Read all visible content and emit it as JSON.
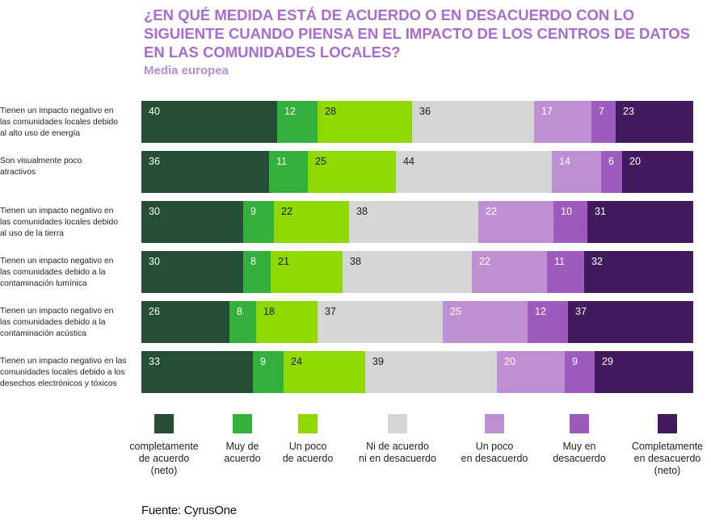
{
  "chart_data": {
    "type": "bar",
    "orientation": "horizontal",
    "stacked": true,
    "title": "¿En qué medida está de acuerdo o en desacuerdo con lo siguiente cuando piensa en el impacto de los centros de datos en las comunidades locales?",
    "subtitle": "Media europea",
    "categories": [
      "Tienen un impacto negativo en las comunidades locales debido al alto uso de energía",
      "Son visualmente poco atractivos",
      "Tienen un impacto negativo en las comunidades locales debido al uso de la tierra",
      "Tienen un impacto negativo en las comunidades debido a la contaminación lumínica",
      "Tienen un impacto negativo en las comunidades debido a la contaminación acústica",
      "Tienen un impacto negativo en las comunidades locales debido a los desechos electrónicos y tóxicos"
    ],
    "series": [
      {
        "name": "completamente de acuerdo (neto)",
        "color": "#264d35",
        "label_color": "#ffffff",
        "values": [
          40,
          36,
          30,
          30,
          26,
          33
        ]
      },
      {
        "name": "Muy de acuerdo",
        "color": "#34b03c",
        "label_color": "#ffffff",
        "values": [
          12,
          11,
          9,
          8,
          8,
          9
        ]
      },
      {
        "name": "Un poco de acuerdo",
        "color": "#8fd800",
        "label_color": "#1a1a1a",
        "values": [
          28,
          25,
          22,
          21,
          18,
          24
        ]
      },
      {
        "name": "Ni de acuerdo ni en desacuerdo",
        "color": "#d5d5d5",
        "label_color": "#1a1a1a",
        "values": [
          36,
          44,
          38,
          38,
          37,
          39
        ]
      },
      {
        "name": "Un poco en desacuerdo",
        "color": "#bf8fd3",
        "label_color": "#ffffff",
        "values": [
          17,
          14,
          22,
          22,
          25,
          20
        ]
      },
      {
        "name": "Muy en desacuerdo",
        "color": "#9c5bbd",
        "label_color": "#ffffff",
        "values": [
          7,
          6,
          10,
          11,
          12,
          9
        ]
      },
      {
        "name": "Completamente en desacuerdo (neto)",
        "color": "#421b5e",
        "label_color": "#ffffff",
        "values": [
          23,
          20,
          31,
          32,
          37,
          29
        ]
      }
    ],
    "legend_position": "bottom",
    "grid": false
  },
  "labels": [
    "Tienen un impacto negativo en\nlas comunidades locales debido\nal alto uso de energía",
    "Son visualmente poco\natractivos",
    "Tienen un impacto negativo en\nlas comunidades locales debido\nal uso de la tierra",
    "Tienen un impacto negativo en\nlas comunidades debido a la\ncontaminación lumínica",
    "Tienen un impacto negativo en\nlas comunidades debido a la\ncontaminación acústica",
    "Tienen un impacto negativo en las\ncomunidades locales debido a los\ndesechos electrónicos y tóxicos"
  ],
  "legend_labels": [
    "completamente\nde acuerdo\n(neto)",
    "Muy de\nacuerdo",
    "Un poco\nde acuerdo",
    "Ni de acuerdo\nni en desacuerdo",
    "Un poco\nen desacuerdo",
    "Muy en\ndesacuerdo",
    "Completamente\nen desacuerdo\n(neto)"
  ],
  "source": "Fuente: CyrusOne"
}
